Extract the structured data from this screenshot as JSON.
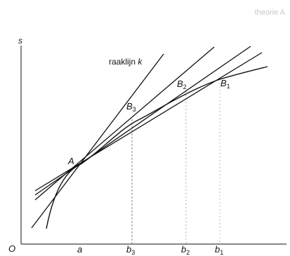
{
  "corner_text": "theorie A",
  "axis": {
    "y_label": "s",
    "origin_label": "O"
  },
  "x_ticks": {
    "a": "a",
    "b3": {
      "base": "b",
      "sub": "3"
    },
    "b2": {
      "base": "b",
      "sub": "2"
    },
    "b1": {
      "base": "b",
      "sub": "1"
    }
  },
  "points": {
    "A": "A",
    "B3": {
      "base": "B",
      "sub": "3"
    },
    "B2": {
      "base": "B",
      "sub": "2"
    },
    "B1": {
      "base": "B",
      "sub": "1"
    }
  },
  "tangent_label": {
    "text": "raaklijn ",
    "var": "k"
  }
}
